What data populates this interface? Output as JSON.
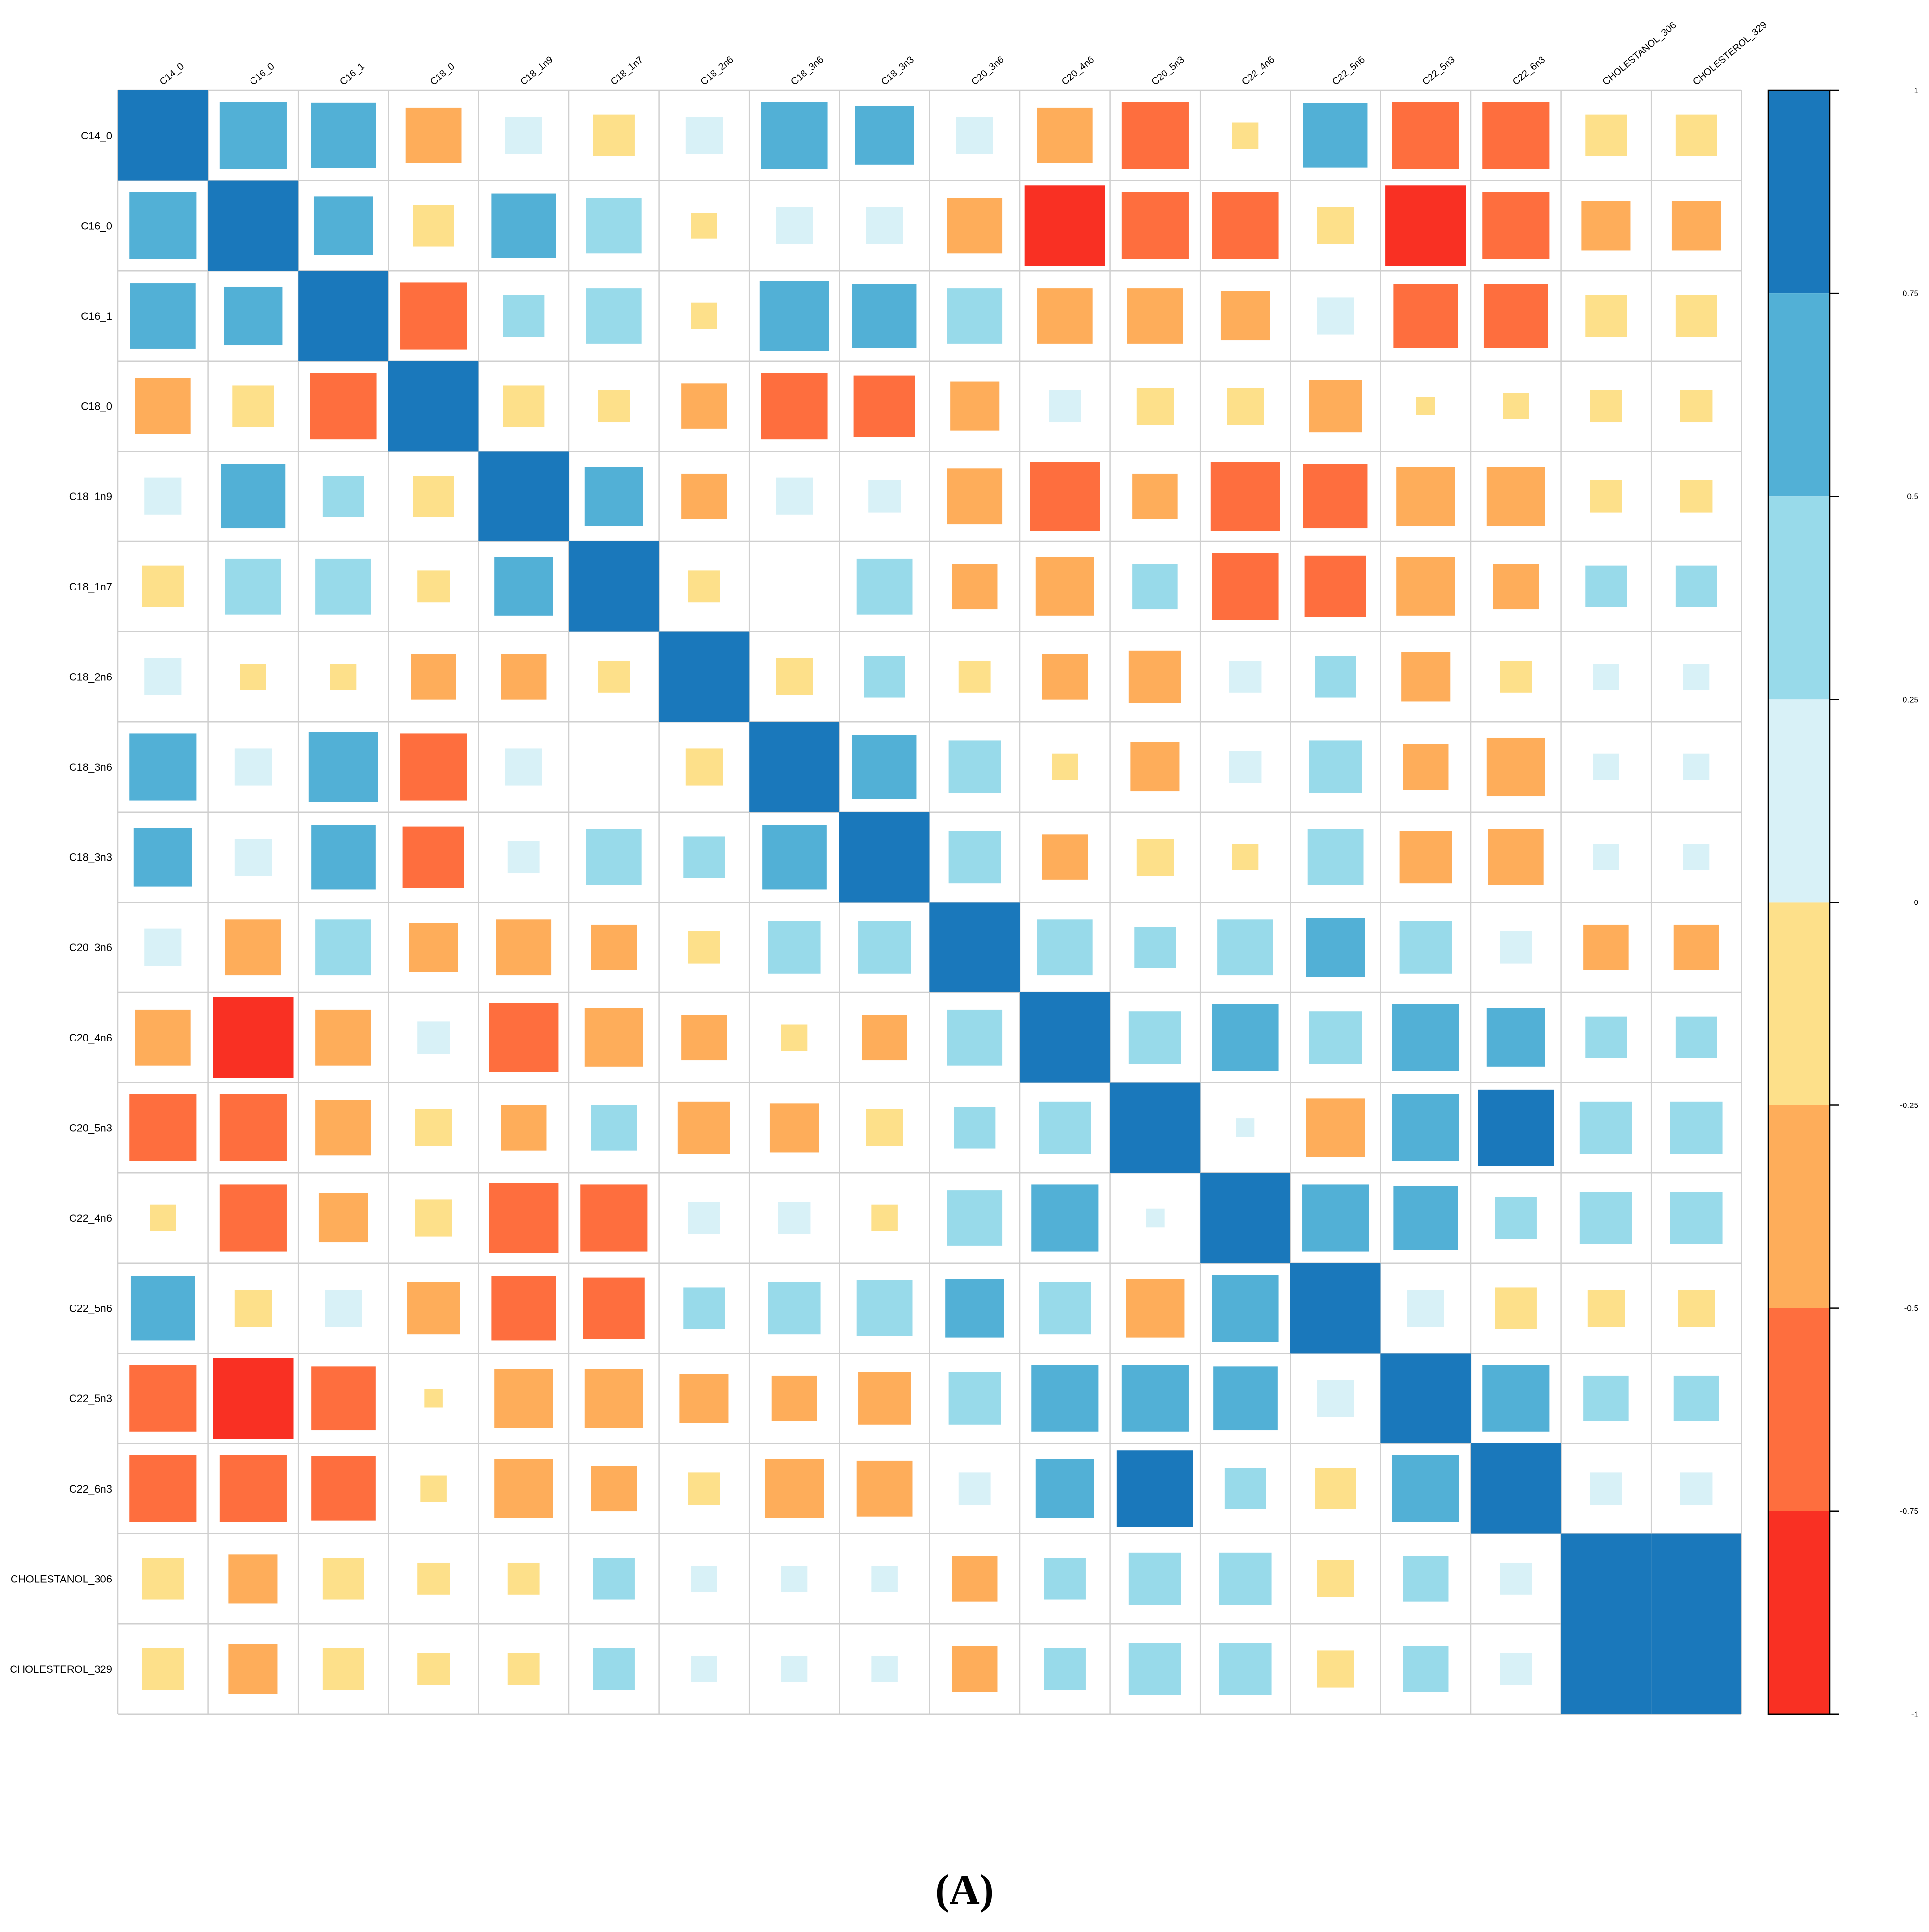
{
  "panel_label": "(A)",
  "chart_data": {
    "type": "heatmap",
    "title": "",
    "variables": [
      "C14_0",
      "C16_0",
      "C16_1",
      "C18_0",
      "C18_1n9",
      "C18_1n7",
      "C18_2n6",
      "C18_3n6",
      "C18_3n3",
      "C20_3n6",
      "C20_4n6",
      "C20_5n3",
      "C22_4n6",
      "C22_5n6",
      "C22_5n3",
      "C22_6n3",
      "CHOLESTANOL_306",
      "CHOLESTEROL_329"
    ],
    "matrix": [
      [
        1.0,
        0.65,
        0.62,
        -0.45,
        0.2,
        -0.25,
        0.2,
        0.65,
        0.5,
        0.2,
        -0.45,
        -0.65,
        -0.1,
        0.6,
        -0.65,
        -0.65,
        -0.25,
        -0.25
      ],
      [
        0.65,
        1.0,
        0.5,
        -0.25,
        0.6,
        0.45,
        -0.1,
        0.2,
        0.2,
        -0.45,
        -0.95,
        -0.65,
        -0.65,
        -0.2,
        -0.95,
        -0.65,
        -0.35,
        -0.35
      ],
      [
        0.62,
        0.5,
        1.0,
        -0.65,
        0.25,
        0.45,
        -0.1,
        0.7,
        0.6,
        0.45,
        -0.45,
        -0.45,
        -0.35,
        0.2,
        -0.6,
        -0.6,
        -0.25,
        -0.25
      ],
      [
        -0.45,
        -0.25,
        -0.65,
        1.0,
        -0.25,
        -0.15,
        -0.3,
        -0.65,
        -0.55,
        -0.35,
        0.15,
        -0.2,
        -0.2,
        -0.4,
        -0.05,
        -0.1,
        -0.15,
        -0.15
      ],
      [
        0.2,
        0.6,
        0.25,
        -0.25,
        1.0,
        0.5,
        -0.3,
        0.2,
        0.15,
        -0.45,
        -0.7,
        -0.3,
        -0.7,
        -0.6,
        -0.5,
        -0.5,
        -0.15,
        -0.15
      ],
      [
        -0.25,
        0.45,
        0.45,
        -0.15,
        0.5,
        1.0,
        -0.15,
        0.0,
        0.45,
        -0.3,
        -0.5,
        0.3,
        -0.65,
        -0.55,
        -0.5,
        -0.3,
        0.25,
        0.25
      ],
      [
        0.2,
        -0.1,
        -0.1,
        -0.3,
        -0.3,
        -0.15,
        1.0,
        -0.2,
        0.25,
        -0.15,
        -0.3,
        -0.4,
        0.15,
        0.25,
        -0.35,
        -0.15,
        0.1,
        0.1
      ],
      [
        0.65,
        0.2,
        0.7,
        -0.65,
        0.2,
        0.0,
        -0.2,
        1.0,
        0.6,
        0.4,
        -0.1,
        -0.35,
        0.15,
        0.4,
        -0.3,
        -0.5,
        0.1,
        0.1
      ],
      [
        0.5,
        0.2,
        0.6,
        -0.55,
        0.15,
        0.45,
        0.25,
        0.6,
        1.0,
        0.4,
        -0.3,
        -0.2,
        -0.1,
        0.45,
        -0.4,
        -0.45,
        0.1,
        0.1
      ],
      [
        0.2,
        -0.45,
        0.45,
        -0.35,
        -0.45,
        -0.3,
        -0.15,
        0.4,
        0.4,
        1.0,
        0.45,
        0.25,
        0.45,
        0.5,
        0.4,
        0.15,
        -0.3,
        -0.3
      ],
      [
        -0.45,
        -0.95,
        -0.45,
        0.15,
        -0.7,
        -0.5,
        -0.3,
        -0.1,
        -0.3,
        0.45,
        1.0,
        0.4,
        0.65,
        0.4,
        0.65,
        0.5,
        0.25,
        0.25
      ],
      [
        -0.65,
        -0.65,
        -0.45,
        -0.2,
        -0.3,
        0.3,
        -0.4,
        -0.35,
        -0.2,
        0.25,
        0.4,
        1.0,
        0.05,
        -0.5,
        0.65,
        0.85,
        0.4,
        0.4
      ],
      [
        -0.1,
        -0.65,
        -0.35,
        -0.2,
        -0.7,
        -0.65,
        0.15,
        0.15,
        -0.1,
        0.45,
        0.65,
        0.05,
        1.0,
        0.65,
        0.6,
        0.25,
        0.4,
        0.4
      ],
      [
        0.6,
        -0.2,
        0.2,
        -0.4,
        -0.6,
        -0.55,
        0.25,
        0.4,
        0.45,
        0.5,
        0.4,
        -0.5,
        0.65,
        1.0,
        0.2,
        -0.25,
        -0.2,
        -0.2
      ],
      [
        -0.65,
        -0.95,
        -0.6,
        -0.05,
        -0.5,
        -0.5,
        -0.35,
        -0.3,
        -0.4,
        0.4,
        0.65,
        0.65,
        0.6,
        0.2,
        1.0,
        0.65,
        0.3,
        0.3
      ],
      [
        -0.65,
        -0.65,
        -0.6,
        -0.1,
        -0.5,
        -0.3,
        -0.15,
        -0.5,
        -0.45,
        0.15,
        0.5,
        0.85,
        0.25,
        -0.25,
        0.65,
        1.0,
        0.15,
        0.15
      ],
      [
        -0.25,
        -0.35,
        -0.25,
        -0.15,
        -0.15,
        0.25,
        0.1,
        0.1,
        0.1,
        -0.3,
        0.25,
        0.4,
        0.4,
        -0.2,
        0.3,
        0.15,
        1.0,
        1.0
      ],
      [
        -0.25,
        -0.35,
        -0.25,
        -0.15,
        -0.15,
        0.25,
        0.1,
        0.1,
        0.1,
        -0.3,
        0.25,
        0.4,
        0.4,
        -0.2,
        0.3,
        0.15,
        1.0,
        1.0
      ]
    ],
    "value_range": [
      -1,
      1
    ],
    "legend": {
      "position": "right",
      "ticks": [
        "1",
        "0.75",
        "0.5",
        "0.25",
        "0",
        "-0.25",
        "-0.5",
        "-0.75",
        "-1"
      ],
      "bins": [
        {
          "from": 0.75,
          "to": 1.0,
          "color": "#1A78BB"
        },
        {
          "from": 0.5,
          "to": 0.75,
          "color": "#52B0D6"
        },
        {
          "from": 0.25,
          "to": 0.5,
          "color": "#98DAEA"
        },
        {
          "from": 0.0,
          "to": 0.25,
          "color": "#D8F1F7"
        },
        {
          "from": -0.25,
          "to": 0.0,
          "color": "#FDE08A"
        },
        {
          "from": -0.5,
          "to": -0.25,
          "color": "#FEAD5A"
        },
        {
          "from": -0.75,
          "to": -0.5,
          "color": "#FE6E3E"
        },
        {
          "from": -1.0,
          "to": -0.75,
          "color": "#F93023"
        }
      ]
    },
    "square_size_scales_with_abs_value": true,
    "grid": true
  }
}
